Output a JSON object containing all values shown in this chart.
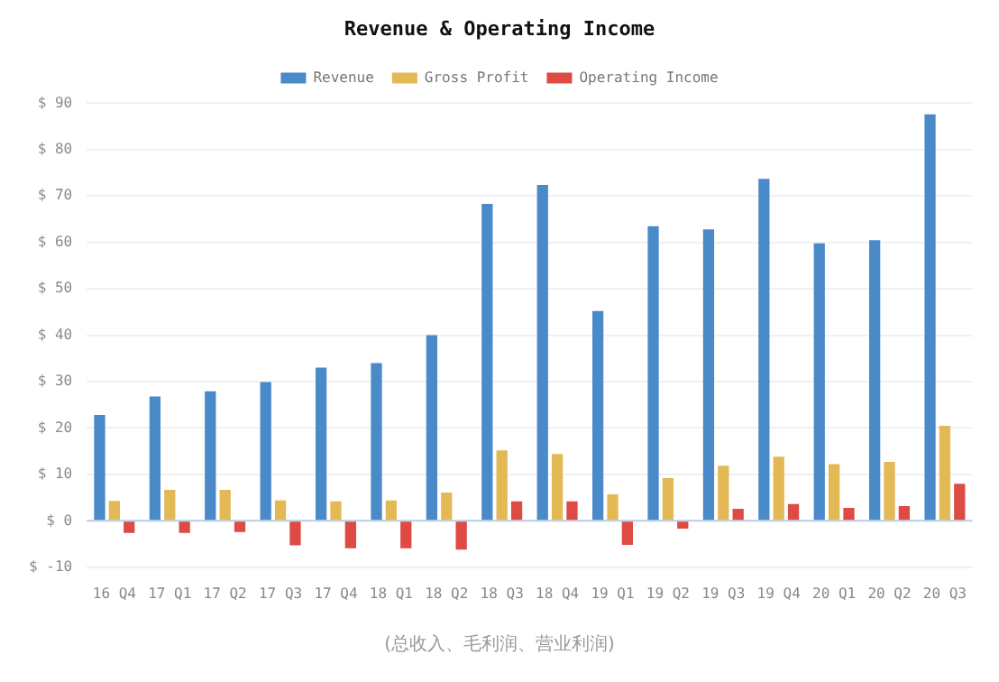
{
  "chart_data": {
    "type": "bar",
    "title": "Revenue & Operating Income",
    "categories": [
      "16 Q4",
      "17 Q1",
      "17 Q2",
      "17 Q3",
      "17 Q4",
      "18 Q1",
      "18 Q2",
      "18 Q3",
      "18 Q4",
      "19 Q1",
      "19 Q2",
      "19 Q3",
      "19 Q4",
      "20 Q1",
      "20 Q2",
      "20 Q3"
    ],
    "series": [
      {
        "name": "Revenue",
        "color": "#4a8ac9",
        "values": [
          22.8,
          26.8,
          27.9,
          29.9,
          33,
          34,
          40,
          68.3,
          72.4,
          45.2,
          63.5,
          62.8,
          73.7,
          59.8,
          60.5,
          87.6
        ]
      },
      {
        "name": "Gross Profit",
        "color": "#e3b955",
        "values": [
          4.3,
          6.7,
          6.7,
          4.4,
          4.2,
          4.4,
          6.1,
          15.2,
          14.4,
          5.7,
          9.2,
          11.9,
          13.8,
          12.2,
          12.7,
          20.5
        ]
      },
      {
        "name": "Operating Income",
        "color": "#de4a44",
        "values": [
          -2.6,
          -2.6,
          -2.4,
          -5.3,
          -5.9,
          -5.9,
          -6.2,
          4.2,
          4.2,
          -5.2,
          -1.7,
          2.6,
          3.6,
          2.8,
          3.2,
          8.0
        ]
      }
    ],
    "ylim": [
      -10,
      90
    ],
    "yticks": [
      {
        "value": -10,
        "label": "$ -10"
      },
      {
        "value": 0,
        "label": "$ 0"
      },
      {
        "value": 10,
        "label": "$ 10"
      },
      {
        "value": 20,
        "label": "$ 20"
      },
      {
        "value": 30,
        "label": "$ 30"
      },
      {
        "value": 40,
        "label": "$ 40"
      },
      {
        "value": 50,
        "label": "$ 50"
      },
      {
        "value": 60,
        "label": "$ 60"
      },
      {
        "value": 70,
        "label": "$ 70"
      },
      {
        "value": 80,
        "label": "$ 80"
      },
      {
        "value": 90,
        "label": "$ 90"
      }
    ],
    "grid": "y",
    "legend": "top",
    "ref_lines": [
      {
        "axis": "y",
        "value": 0,
        "color": "#bbd0e6"
      }
    ],
    "annotations": [
      "(总收入、毛利润、营业利润)"
    ]
  }
}
